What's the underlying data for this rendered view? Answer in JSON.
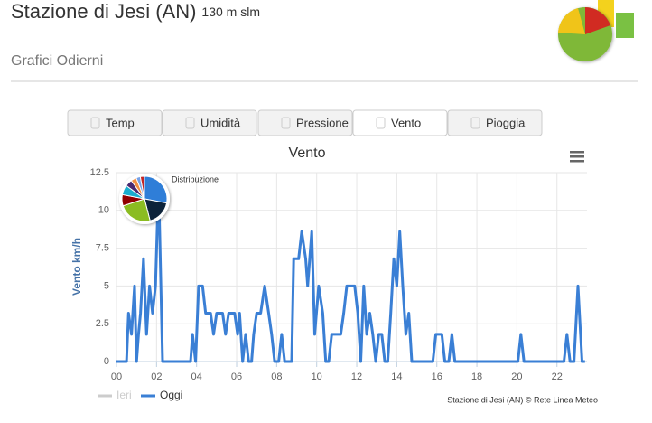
{
  "header": {
    "title": "Stazione di Jesi (AN)",
    "elevation": "130 m slm",
    "subtitle": "Grafici Odierni"
  },
  "tabs": [
    "Temp",
    "Umidità",
    "Pressione",
    "Vento",
    "Pioggia"
  ],
  "chart_data": [
    {
      "type": "line",
      "title": "Vento",
      "y_label": "Vento km/h",
      "credits": "Stazione di Jesi (AN) © Rete Linea Meteo",
      "x": [
        0,
        0.5,
        0.6,
        0.75,
        0.9,
        1.0,
        1.1,
        1.2,
        1.35,
        1.5,
        1.65,
        1.8,
        1.95,
        2.1,
        2.3,
        3.7,
        3.8,
        3.95,
        4.1,
        4.3,
        4.45,
        4.7,
        4.85,
        5.0,
        5.3,
        5.45,
        5.6,
        5.9,
        6.05,
        6.15,
        6.3,
        6.45,
        6.6,
        6.75,
        6.85,
        7.0,
        7.2,
        7.4,
        7.6,
        7.75,
        7.9,
        8.1,
        8.25,
        8.4,
        8.75,
        8.85,
        9.1,
        9.25,
        9.45,
        9.55,
        9.75,
        9.9,
        10.1,
        10.3,
        10.45,
        10.6,
        10.75,
        11.2,
        11.35,
        11.5,
        11.9,
        12.05,
        12.2,
        12.35,
        12.5,
        12.65,
        12.8,
        12.95,
        13.1,
        13.25,
        13.4,
        13.55,
        13.7,
        13.85,
        14.0,
        14.15,
        14.3,
        14.45,
        14.6,
        14.75,
        15.8,
        15.95,
        16.25,
        16.4,
        16.6,
        16.75,
        16.9,
        20.05,
        20.2,
        20.35,
        22.35,
        22.5,
        22.65,
        22.85,
        23.05,
        23.25,
        23.4
      ],
      "series": [
        {
          "name": "Ieri",
          "color": "#cccccc",
          "values": [
            null,
            null,
            null,
            null,
            null,
            null,
            null,
            null,
            null,
            null,
            null,
            null,
            null,
            null,
            null,
            null,
            null,
            null,
            null,
            null,
            null,
            null,
            null,
            null,
            null,
            null,
            null,
            null,
            null,
            null,
            null,
            null,
            null,
            null,
            null,
            null,
            null,
            null,
            null,
            null,
            null,
            null,
            null,
            null,
            null,
            null,
            null,
            null,
            null,
            null,
            null,
            null,
            null,
            null,
            null,
            null,
            null,
            null,
            null,
            null,
            null,
            null,
            null,
            null,
            null,
            null,
            null,
            null,
            null,
            null,
            null,
            null,
            null,
            null,
            null,
            null,
            null,
            null,
            null,
            null,
            null,
            null,
            null,
            null,
            null,
            null,
            null,
            null,
            null,
            null,
            null,
            null,
            null,
            null,
            null,
            null,
            null
          ]
        },
        {
          "name": "Oggi",
          "color": "#3a7fd5",
          "values": [
            0,
            0,
            3.2,
            1.8,
            5,
            0,
            1.8,
            3.2,
            6.8,
            1.8,
            5,
            3.2,
            5,
            11.9,
            0,
            0,
            1.8,
            0,
            5,
            5,
            3.2,
            3.2,
            1.8,
            3.2,
            3.2,
            1.8,
            3.2,
            3.2,
            1.8,
            3.2,
            0,
            1.8,
            0,
            0,
            1.8,
            3.2,
            3.2,
            5,
            3.2,
            1.8,
            0,
            0,
            1.8,
            0,
            0,
            6.8,
            6.8,
            8.6,
            6.8,
            5,
            8.6,
            1.8,
            5,
            3.2,
            0,
            0,
            1.8,
            1.8,
            3.2,
            5,
            5,
            3.2,
            0,
            5,
            1.8,
            3.2,
            1.8,
            0,
            1.8,
            1.8,
            0,
            0,
            3.2,
            6.8,
            5,
            8.6,
            5,
            1.8,
            3.2,
            0,
            0,
            1.8,
            1.8,
            0,
            0,
            1.8,
            0,
            0,
            1.8,
            0,
            0,
            1.8,
            0,
            0,
            5,
            0,
            0
          ]
        }
      ],
      "xlim": [
        0,
        23.5
      ],
      "xticks": [
        {
          "value": 0,
          "label": "00"
        },
        {
          "value": 2,
          "label": "02"
        },
        {
          "value": 4,
          "label": "04"
        },
        {
          "value": 6,
          "label": "06"
        },
        {
          "value": 8,
          "label": "08"
        },
        {
          "value": 10,
          "label": "10"
        },
        {
          "value": 12,
          "label": "12"
        },
        {
          "value": 14,
          "label": "14"
        },
        {
          "value": 16,
          "label": "16"
        },
        {
          "value": 18,
          "label": "18"
        },
        {
          "value": 20,
          "label": "20"
        },
        {
          "value": 22,
          "label": "22"
        }
      ],
      "ylim": [
        0,
        12.5
      ],
      "yticks": [
        0,
        2.5,
        5,
        7.5,
        10,
        12.5
      ],
      "grid": true
    },
    {
      "type": "pie",
      "title": "Distribuzione",
      "values": [
        28,
        18,
        24,
        8,
        7,
        5,
        4,
        3,
        3
      ],
      "colors": [
        "#2f7ed8",
        "#0d233a",
        "#8bbc21",
        "#910000",
        "#1aadce",
        "#492970",
        "#f28f43",
        "#77a1e5",
        "#c42525"
      ]
    }
  ]
}
